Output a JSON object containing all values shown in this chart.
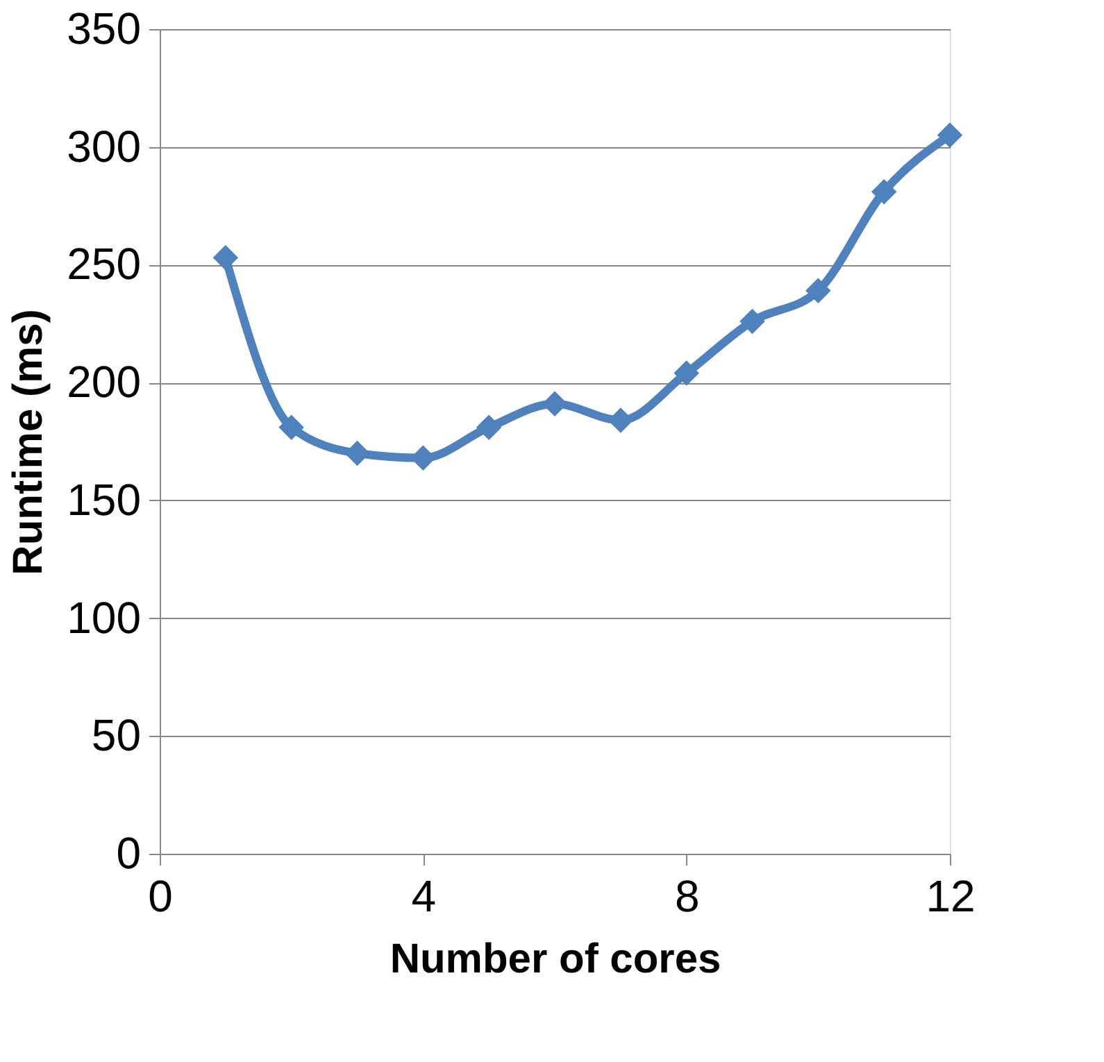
{
  "chart_data": {
    "type": "line",
    "xlabel": "Number of cores",
    "ylabel": "Runtime (ms)",
    "x": [
      1,
      2,
      3,
      4,
      5,
      6,
      7,
      8,
      9,
      10,
      11,
      12
    ],
    "series": [
      {
        "color": "#4f81bd",
        "values": [
          253,
          181,
          170,
          168,
          181,
          191,
          184,
          204,
          226,
          239,
          281,
          305
        ]
      }
    ],
    "xlim": [
      0,
      12
    ],
    "xticks": [
      0,
      4,
      8,
      12
    ],
    "ylim": [
      0,
      350
    ],
    "yticks": [
      0,
      50,
      100,
      150,
      200,
      250,
      300,
      350
    ],
    "grid": "y",
    "marker": "diamond",
    "line_style": "solid"
  }
}
